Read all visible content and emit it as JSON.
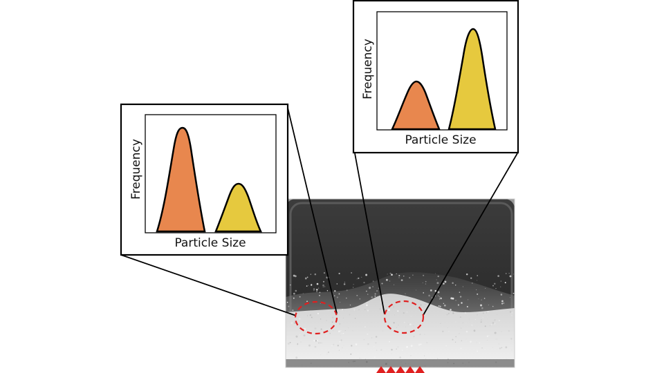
{
  "insets": [
    {
      "id": "left",
      "ylabel": "Frequency",
      "xlabel": "Particle Size",
      "peaks": [
        {
          "color": "#e8874e",
          "relative_height": 1.0
        },
        {
          "color": "#e6c93e",
          "relative_height": 0.55
        }
      ]
    },
    {
      "id": "right",
      "ylabel": "Frequency",
      "xlabel": "Particle Size",
      "peaks": [
        {
          "color": "#e8874e",
          "relative_height": 0.5
        },
        {
          "color": "#e6c93e",
          "relative_height": 1.0
        }
      ]
    }
  ],
  "colors": {
    "small_particles": "#e8874e",
    "large_particles": "#e6c93e",
    "highlight_circle": "#e02020",
    "airflow_arrows": "#e02020"
  },
  "icons": [
    "airflow-arrow-icon"
  ]
}
